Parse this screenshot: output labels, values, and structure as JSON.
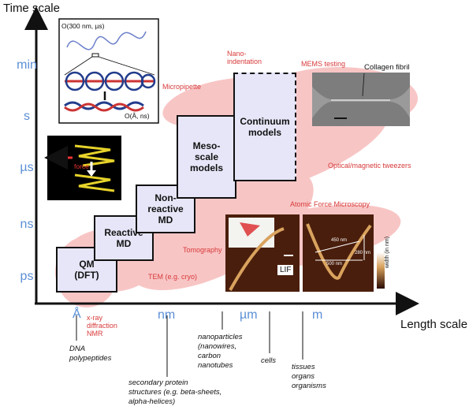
{
  "axes": {
    "y_title": "Time scale",
    "x_title": "Length scale",
    "y_ticks": [
      "min",
      "s",
      "µs",
      "ns",
      "ps"
    ],
    "x_ticks": [
      "Å",
      "nm",
      "µm",
      "m"
    ]
  },
  "models": [
    {
      "label": "QM\n(DFT)"
    },
    {
      "label": "Reactive\nMD"
    },
    {
      "label": "Non-\nreactive\nMD"
    },
    {
      "label": "Meso-\nscale\nmodels"
    },
    {
      "label": "Continuum\nmodels"
    }
  ],
  "techniques": {
    "nanoindentation": "Nano-\nindentation",
    "mems": "MEMS testing",
    "micropipette": "Micropipette",
    "tweezers": "Optical/magnetic tweezers",
    "afm": "Atomic Force Microscopy",
    "tomography": "Tomography",
    "tem": "TEM (e.g. cryo)",
    "xray": "x-ray\ndiffraction\nNMR"
  },
  "examples": {
    "dna": "DNA\npolypeptides",
    "secondary": "secondary protein\nstructures (e.g. beta-sheets,\nalpha-helices)",
    "nanoparticles": "nanoparticles\n(nanowires,\ncarbon\nnanotubes",
    "cells": "cells",
    "tissues": "tissues\norgans\norganisms"
  },
  "insets": {
    "polymer_top": "O(300 nm, µs)",
    "polymer_bottom": "O(Å, ns)",
    "force": "force",
    "collagen": "Collagen fibril",
    "lif": "LIF",
    "afm_scale": "width (in nm)",
    "afm_m1": "450 nm",
    "afm_m2": "500 nm",
    "afm_m3": "280 nm"
  },
  "colors": {
    "axis": "#111111",
    "tick_blue": "#5b8fd6",
    "technique_red": "#d83a3a",
    "blob": "#f08080",
    "box_fill": "#e6e6f8"
  }
}
